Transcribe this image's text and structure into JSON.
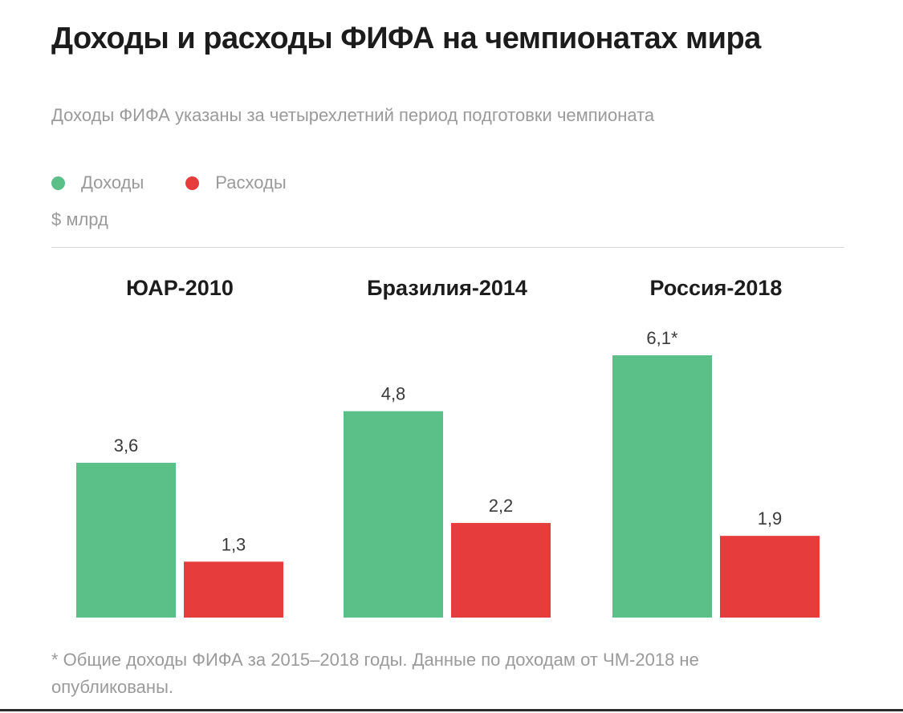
{
  "header": {
    "title": "Доходы и расходы ФИФА на чемпионатах мира",
    "subtitle": "Доходы ФИФА указаны за четырехлетний период подготовки чемпионата",
    "unit": "$ млрд"
  },
  "legend": [
    {
      "label": "Доходы",
      "color": "#5bbf88"
    },
    {
      "label": "Расходы",
      "color": "#e63c3c"
    }
  ],
  "footnote": "* Общие доходы ФИФА за 2015–2018 годы. Данные по доходам от ЧМ-2018 не опубликованы.",
  "chart_data": {
    "type": "bar",
    "title": "Доходы и расходы ФИФА на чемпионатах мира",
    "subtitle": "Доходы ФИФА указаны за четырехлетний период подготовки чемпионата",
    "ylabel": "$ млрд",
    "xlabel": "",
    "categories": [
      "ЮАР-2010",
      "Бразилия-2014",
      "Россия-2018"
    ],
    "series": [
      {
        "name": "Доходы",
        "color": "#5bbf88",
        "values": [
          3.6,
          4.8,
          6.1
        ],
        "labels": [
          "3,6",
          "4,8",
          "6,1*"
        ]
      },
      {
        "name": "Расходы",
        "color": "#e63c3c",
        "values": [
          1.3,
          2.2,
          1.9
        ],
        "labels": [
          "1,3",
          "2,2",
          "1,9"
        ]
      }
    ],
    "ylim": [
      0,
      6.1
    ],
    "grid": false,
    "legend_position": "top-left"
  }
}
